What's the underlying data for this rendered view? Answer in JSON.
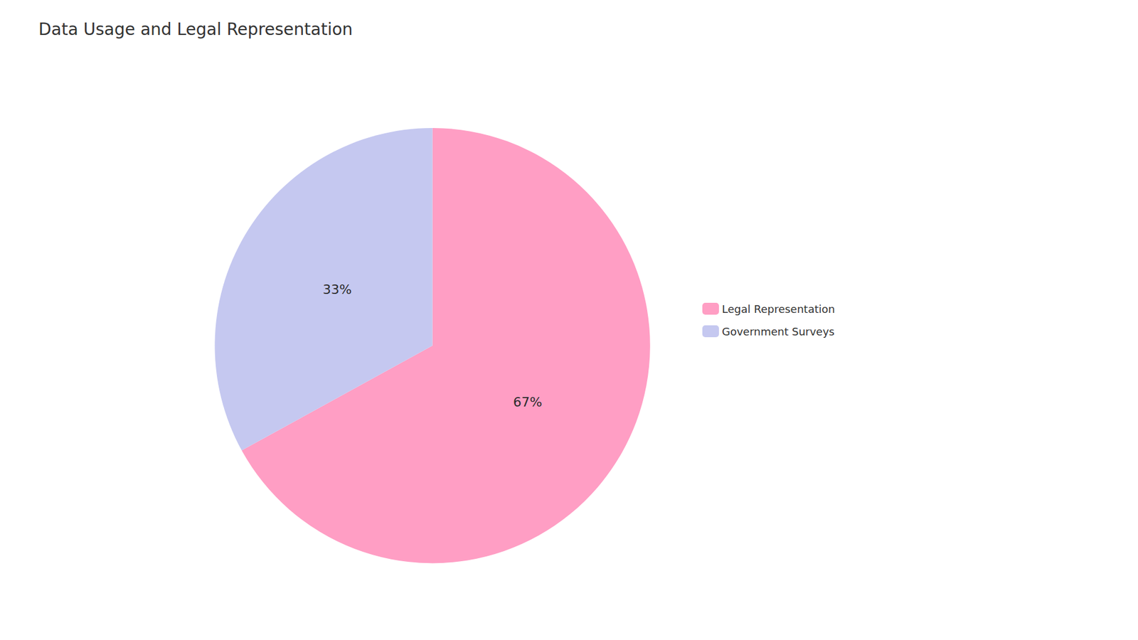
{
  "chart_data": {
    "type": "pie",
    "title": "Data Usage and Legal Representation",
    "categories": [
      "Legal Representation",
      "Government Surveys"
    ],
    "values": [
      67,
      33
    ],
    "value_labels": [
      "67%",
      "33%"
    ],
    "colors": [
      "#FF9EC4",
      "#C5C8F0"
    ],
    "data_labels": true,
    "legend": "right"
  }
}
